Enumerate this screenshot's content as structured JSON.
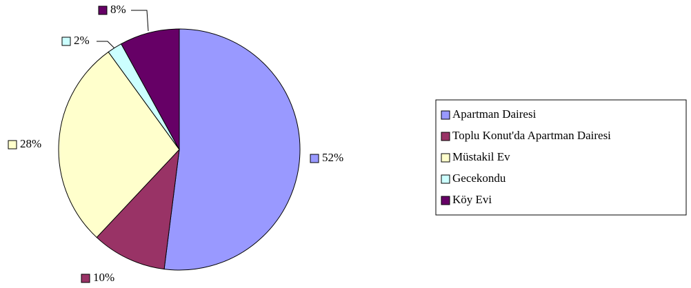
{
  "chart_data": {
    "type": "pie",
    "categories": [
      "Apartman Dairesi",
      "Toplu Konut'da Apartman Dairesi",
      "Müstakil Ev",
      "Gecekondu",
      "Köy Evi"
    ],
    "values": [
      52,
      10,
      28,
      2,
      8
    ],
    "value_labels": [
      "52%",
      "10%",
      "28%",
      "2%",
      "8%"
    ],
    "colors": [
      "#9999ff",
      "#993366",
      "#ffffcc",
      "#ccffff",
      "#660066"
    ],
    "legend": "right"
  }
}
